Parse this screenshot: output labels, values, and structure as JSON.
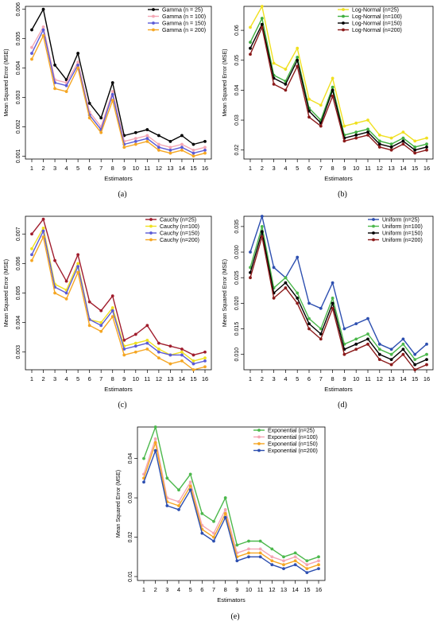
{
  "chart_data": [
    {
      "type": "line",
      "caption": "(a)",
      "xlabel": "Estimators",
      "ylabel": "Mean Squared Error (MSE)",
      "categories": [
        "1",
        "2",
        "3",
        "4",
        "5",
        "6",
        "7",
        "8",
        "9",
        "10",
        "11",
        "12",
        "13",
        "14",
        "15",
        "16"
      ],
      "ylim": [
        0.0009,
        0.0061
      ],
      "yticks": [
        0.001,
        0.002,
        0.003,
        0.004,
        0.005,
        0.006
      ],
      "ytick_labels": [
        "0.001",
        "0.002",
        "0.003",
        "0.004",
        "0.005",
        "0.006"
      ],
      "legend_position": "top-right",
      "series": [
        {
          "name": "Gamma  (n = 25)",
          "color": "#000000",
          "values": [
            0.0053,
            0.006,
            0.0041,
            0.0036,
            0.0045,
            0.0028,
            0.0023,
            0.0035,
            0.0017,
            0.0018,
            0.0019,
            0.0017,
            0.0015,
            0.0017,
            0.0014,
            0.0015
          ]
        },
        {
          "name": "Gamma  (n = 100)",
          "color": "#f4a6b4",
          "values": [
            0.0047,
            0.0054,
            0.0036,
            0.0035,
            0.0042,
            0.0025,
            0.002,
            0.0032,
            0.0015,
            0.0016,
            0.0017,
            0.0014,
            0.0013,
            0.0014,
            0.0012,
            0.0013
          ]
        },
        {
          "name": "Gamma  (n = 150)",
          "color": "#5b5bd6",
          "values": [
            0.0045,
            0.0053,
            0.0035,
            0.0034,
            0.0041,
            0.0024,
            0.0019,
            0.0031,
            0.0014,
            0.0015,
            0.0016,
            0.0013,
            0.0012,
            0.0013,
            0.0011,
            0.0012
          ]
        },
        {
          "name": "Gamma  (n = 200)",
          "color": "#f5a623",
          "values": [
            0.0043,
            0.0051,
            0.0033,
            0.0032,
            0.004,
            0.0023,
            0.0018,
            0.0029,
            0.0013,
            0.0014,
            0.0015,
            0.0012,
            0.0011,
            0.0012,
            0.001,
            0.0011
          ]
        }
      ]
    },
    {
      "type": "line",
      "caption": "(b)",
      "xlabel": "Estimators",
      "ylabel": "Mean Squared Error (MSE)",
      "categories": [
        "1",
        "2",
        "3",
        "4",
        "5",
        "6",
        "7",
        "8",
        "9",
        "10",
        "11",
        "12",
        "13",
        "14",
        "15",
        "16"
      ],
      "ylim": [
        0.017,
        0.068
      ],
      "yticks": [
        0.02,
        0.03,
        0.04,
        0.05,
        0.06
      ],
      "ytick_labels": [
        "0.02",
        "0.03",
        "0.04",
        "0.05",
        "0.06"
      ],
      "legend_position": "top-right",
      "series": [
        {
          "name": "Log-Normal (n=25)",
          "color": "#f0e020",
          "values": [
            0.061,
            0.068,
            0.049,
            0.047,
            0.054,
            0.037,
            0.035,
            0.044,
            0.028,
            0.029,
            0.03,
            0.025,
            0.024,
            0.026,
            0.023,
            0.024
          ]
        },
        {
          "name": "Log-Normal (n=100)",
          "color": "#3fae3f",
          "values": [
            0.056,
            0.064,
            0.045,
            0.043,
            0.051,
            0.034,
            0.03,
            0.041,
            0.025,
            0.026,
            0.027,
            0.023,
            0.022,
            0.024,
            0.021,
            0.022
          ]
        },
        {
          "name": "Log-Normal (n=150)",
          "color": "#000000",
          "values": [
            0.054,
            0.062,
            0.044,
            0.042,
            0.05,
            0.033,
            0.029,
            0.04,
            0.024,
            0.025,
            0.026,
            0.022,
            0.021,
            0.023,
            0.02,
            0.021
          ]
        },
        {
          "name": "Log-Normal (n=200)",
          "color": "#8b1a1a",
          "values": [
            0.052,
            0.061,
            0.042,
            0.04,
            0.048,
            0.031,
            0.028,
            0.038,
            0.023,
            0.024,
            0.025,
            0.021,
            0.02,
            0.022,
            0.019,
            0.02
          ]
        }
      ]
    },
    {
      "type": "line",
      "caption": "(c)",
      "xlabel": "Estimators",
      "ylabel": "Mean Squared Error (MSE)",
      "categories": [
        "1",
        "2",
        "3",
        "4",
        "5",
        "6",
        "7",
        "8",
        "9",
        "10",
        "11",
        "12",
        "13",
        "14",
        "15",
        "16"
      ],
      "ylim": [
        0.0024,
        0.0076
      ],
      "yticks": [
        0.003,
        0.004,
        0.005,
        0.006,
        0.007
      ],
      "ytick_labels": [
        "0.003",
        "0.004",
        "0.005",
        "0.006",
        "0.007"
      ],
      "legend_position": "top-right",
      "series": [
        {
          "name": "Cauchy (n=25)",
          "color": "#a01c2c",
          "values": [
            0.007,
            0.0075,
            0.0061,
            0.0054,
            0.0063,
            0.0047,
            0.0044,
            0.0049,
            0.0034,
            0.0036,
            0.0039,
            0.0033,
            0.0032,
            0.0031,
            0.0029,
            0.003
          ]
        },
        {
          "name": "Cauchy (n=100)",
          "color": "#f0e020",
          "values": [
            0.0065,
            0.0072,
            0.0053,
            0.0051,
            0.006,
            0.0041,
            0.004,
            0.0045,
            0.0032,
            0.0033,
            0.0034,
            0.0031,
            0.0029,
            0.003,
            0.0027,
            0.0028
          ]
        },
        {
          "name": "Cauchy (n=150)",
          "color": "#5b5bd6",
          "values": [
            0.0063,
            0.0071,
            0.0052,
            0.005,
            0.0059,
            0.0041,
            0.0039,
            0.0044,
            0.0031,
            0.0032,
            0.0033,
            0.003,
            0.0029,
            0.0029,
            0.0026,
            0.0027
          ]
        },
        {
          "name": "Cauchy (n=200)",
          "color": "#f5a623",
          "values": [
            0.0061,
            0.0069,
            0.005,
            0.0048,
            0.0057,
            0.0039,
            0.0037,
            0.0042,
            0.0029,
            0.003,
            0.0031,
            0.0028,
            0.0026,
            0.0027,
            0.0024,
            0.0025
          ]
        }
      ]
    },
    {
      "type": "line",
      "caption": "(d)",
      "xlabel": "Estimators",
      "ylabel": "Mean Squared Error (MSE)",
      "categories": [
        "1",
        "2",
        "3",
        "4",
        "5",
        "6",
        "7",
        "8",
        "9",
        "10",
        "11",
        "12",
        "13",
        "14",
        "15",
        "16"
      ],
      "ylim": [
        0.007,
        0.037
      ],
      "yticks": [
        0.01,
        0.015,
        0.02,
        0.025,
        0.03,
        0.035
      ],
      "ytick_labels": [
        "0.010",
        "0.015",
        "0.020",
        "0.025",
        "0.030",
        "0.035"
      ],
      "legend_position": "top-right",
      "series": [
        {
          "name": "Uniform (n=25)",
          "color": "#2d4fb0",
          "values": [
            0.03,
            0.037,
            0.027,
            0.025,
            0.029,
            0.02,
            0.019,
            0.024,
            0.015,
            0.016,
            0.017,
            0.012,
            0.011,
            0.013,
            0.01,
            0.012
          ]
        },
        {
          "name": "Uniform (n=100)",
          "color": "#4cb84c",
          "values": [
            0.027,
            0.035,
            0.023,
            0.025,
            0.022,
            0.017,
            0.015,
            0.021,
            0.012,
            0.013,
            0.014,
            0.011,
            0.01,
            0.012,
            0.009,
            0.01
          ]
        },
        {
          "name": "Uniform (n=150)",
          "color": "#000000",
          "values": [
            0.026,
            0.034,
            0.022,
            0.024,
            0.021,
            0.016,
            0.014,
            0.02,
            0.011,
            0.012,
            0.013,
            0.01,
            0.009,
            0.011,
            0.008,
            0.009
          ]
        },
        {
          "name": "Uniform (n=200)",
          "color": "#8b1a1a",
          "values": [
            0.025,
            0.033,
            0.021,
            0.023,
            0.02,
            0.015,
            0.013,
            0.019,
            0.01,
            0.011,
            0.012,
            0.009,
            0.008,
            0.01,
            0.007,
            0.008
          ]
        }
      ]
    },
    {
      "type": "line",
      "caption": "(e)",
      "xlabel": "Estimators",
      "ylabel": "Mean Squared Error (MSE)",
      "categories": [
        "1",
        "2",
        "3",
        "4",
        "5",
        "6",
        "7",
        "8",
        "9",
        "10",
        "11",
        "12",
        "13",
        "14",
        "15",
        "16"
      ],
      "ylim": [
        0.009,
        0.048
      ],
      "yticks": [
        0.01,
        0.02,
        0.03,
        0.04
      ],
      "ytick_labels": [
        "0.01",
        "0.02",
        "0.03",
        "0.04"
      ],
      "legend_position": "top-right",
      "series": [
        {
          "name": "Exponential (n=25)",
          "color": "#4cb84c",
          "values": [
            0.04,
            0.048,
            0.035,
            0.032,
            0.036,
            0.026,
            0.024,
            0.03,
            0.018,
            0.019,
            0.019,
            0.017,
            0.015,
            0.016,
            0.014,
            0.015
          ]
        },
        {
          "name": "Exponential (n=100)",
          "color": "#f4a6b4",
          "values": [
            0.036,
            0.045,
            0.03,
            0.029,
            0.034,
            0.023,
            0.021,
            0.027,
            0.016,
            0.017,
            0.017,
            0.015,
            0.014,
            0.015,
            0.013,
            0.014
          ]
        },
        {
          "name": "Exponential (n=150)",
          "color": "#f5a623",
          "values": [
            0.035,
            0.044,
            0.029,
            0.028,
            0.033,
            0.022,
            0.02,
            0.026,
            0.015,
            0.016,
            0.016,
            0.014,
            0.013,
            0.014,
            0.012,
            0.013
          ]
        },
        {
          "name": "Exponential (n=200)",
          "color": "#2d4fb0",
          "values": [
            0.034,
            0.042,
            0.028,
            0.027,
            0.032,
            0.021,
            0.019,
            0.025,
            0.014,
            0.015,
            0.015,
            0.013,
            0.012,
            0.013,
            0.011,
            0.012
          ]
        }
      ]
    }
  ]
}
